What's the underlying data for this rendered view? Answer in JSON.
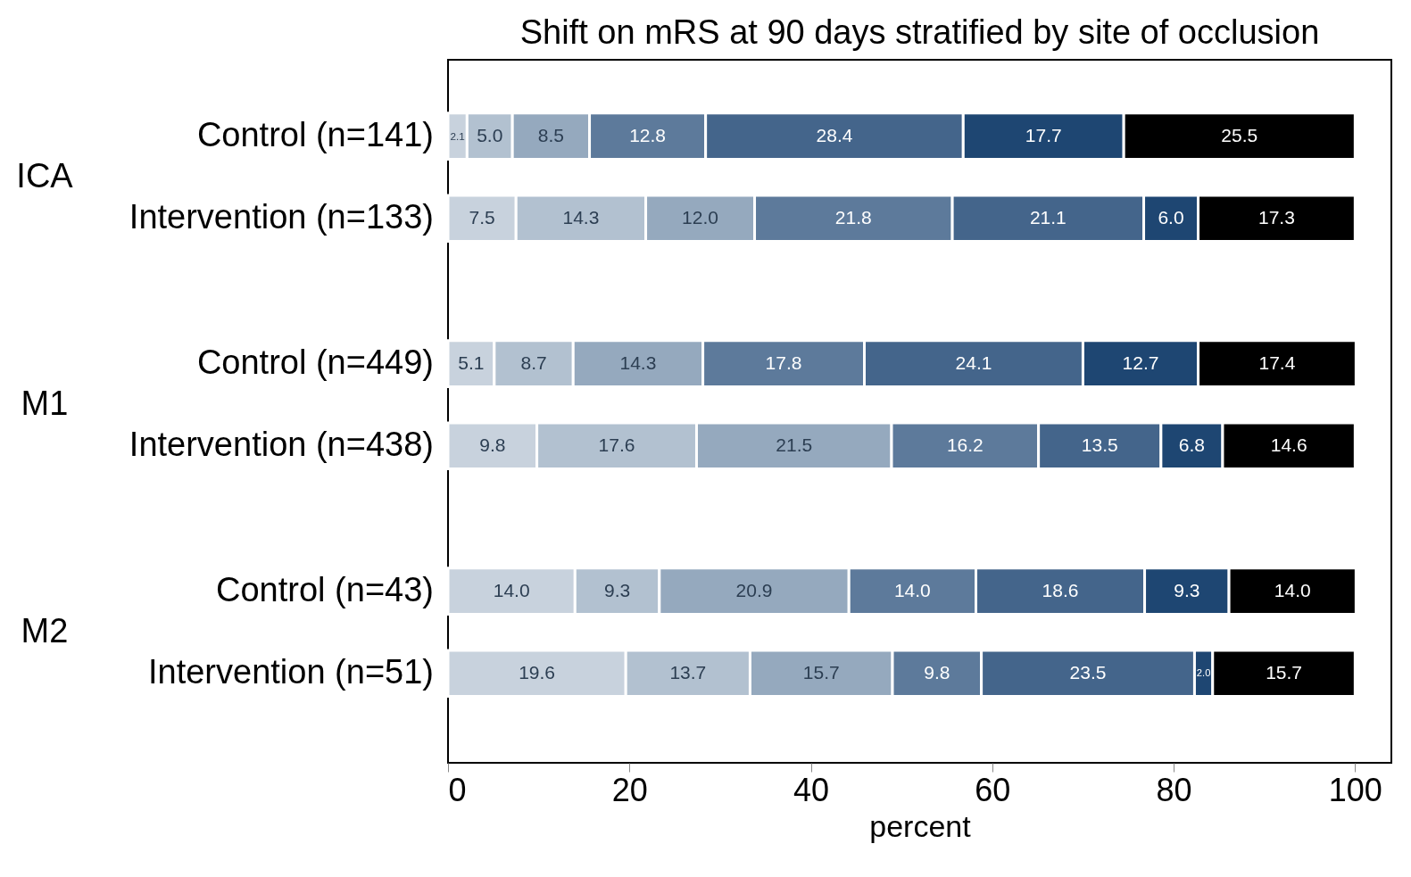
{
  "chart_data": {
    "type": "bar",
    "title": "Shift on mRS at 90 days stratified by site of occlusion",
    "xlabel": "percent",
    "orientation": "horizontal",
    "stacked": true,
    "categories": [
      "Control (n=141)",
      "Intervention (n=133)",
      "Control (n=449)",
      "Intervention (n=438)",
      "Control (n=43)",
      "Intervention (n=51)"
    ],
    "annotations": [
      "ICA",
      "M1",
      "M2"
    ],
    "series": [
      {
        "color": "#c8d2dd",
        "values": [
          2.1,
          7.5,
          5.1,
          9.8,
          14.0,
          19.6
        ],
        "value_labels": [
          "2.1",
          "7.5",
          "5.1",
          "9.8",
          "14.0",
          "19.6"
        ]
      },
      {
        "color": "#b2c1d0",
        "values": [
          5.0,
          14.3,
          8.7,
          17.6,
          9.3,
          13.7
        ],
        "value_labels": [
          "5.0",
          "14.3",
          "8.7",
          "17.6",
          "9.3",
          "13.7"
        ]
      },
      {
        "color": "#95a9be",
        "values": [
          8.5,
          12.0,
          14.3,
          21.5,
          20.9,
          15.7
        ],
        "value_labels": [
          "8.5",
          "12.0",
          "14.3",
          "21.5",
          "20.9",
          "15.7"
        ]
      },
      {
        "color": "#5d7a9b",
        "values": [
          12.8,
          21.8,
          17.8,
          16.2,
          14.0,
          9.8
        ],
        "value_labels": [
          "12.8",
          "21.8",
          "17.8",
          "16.2",
          "14.0",
          "9.8"
        ]
      },
      {
        "color": "#44658b",
        "values": [
          28.4,
          21.1,
          24.1,
          13.5,
          18.6,
          23.5
        ],
        "value_labels": [
          "28.4",
          "21.1",
          "24.1",
          "13.5",
          "18.6",
          "23.5"
        ]
      },
      {
        "color": "#1e4672",
        "values": [
          17.7,
          6.0,
          12.7,
          6.8,
          9.3,
          2.0
        ],
        "value_labels": [
          "17.7",
          "6.0",
          "12.7",
          "6.8",
          "9.3",
          "2.0"
        ]
      },
      {
        "color": "#000000",
        "values": [
          25.5,
          17.3,
          17.4,
          14.6,
          14.0,
          15.7
        ],
        "value_labels": [
          "25.5",
          "17.3",
          "17.4",
          "14.6",
          "14.0",
          "15.7"
        ]
      }
    ],
    "xlim": [
      0,
      104
    ],
    "xticks": [
      0,
      20,
      40,
      60,
      80,
      100
    ]
  }
}
